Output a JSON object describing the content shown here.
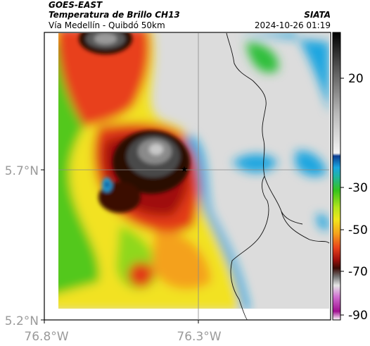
{
  "header": {
    "title_line1": "GOES-EAST",
    "title_line2": "Temperatura de Brillo CH13",
    "title_line3": "Vía Medellín - Quibdó 50km",
    "brand": "SIATA",
    "timestamp": "2024-10-26 01:19"
  },
  "map": {
    "lat_labels": [
      "5.7°N",
      "5.2°N"
    ],
    "lon_labels": [
      "76.8°W",
      "76.3°W"
    ],
    "marker_icon": "star-icon"
  },
  "colorbar": {
    "tick_labels": [
      "20",
      "-30",
      "-50",
      "-70",
      "-90"
    ]
  },
  "colors": {
    "cold_core": "#2a0a05",
    "red": "#d81e0a",
    "green": "#35c41c",
    "yellow": "#f0e61c",
    "cyan": "#1aa6e0",
    "gray_warm": "#dcdcdc"
  }
}
